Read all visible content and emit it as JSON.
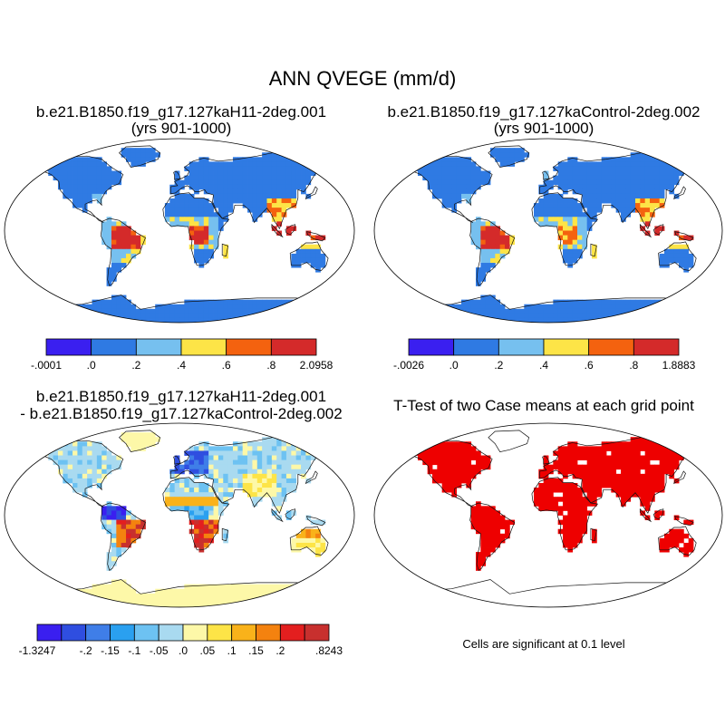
{
  "title": "ANN QVEGE (mm/d)",
  "chart_data": [
    {
      "type": "heatmap",
      "name": "case1",
      "title": "b.e21.B1850.f19_g17.127kaH11-2deg.001",
      "subtitle": "(yrs 901-1000)",
      "colorbar": {
        "ticks": [
          "-.0001",
          ".0",
          ".2",
          ".4",
          ".6",
          ".8",
          "2.0958"
        ],
        "colors": [
          "#3a1ff0",
          "#2f7ae3",
          "#76c0ef",
          "#fde447",
          "#f4620f",
          "#d42a2a"
        ]
      }
    },
    {
      "type": "heatmap",
      "name": "case2",
      "title": "b.e21.B1850.f19_g17.127kaControl-2deg.002",
      "subtitle": "(yrs 901-1000)",
      "colorbar": {
        "ticks": [
          "-.0026",
          ".0",
          ".2",
          ".4",
          ".6",
          ".8",
          "1.8883"
        ],
        "colors": [
          "#3a1ff0",
          "#2f7ae3",
          "#76c0ef",
          "#fde447",
          "#f4620f",
          "#d42a2a"
        ]
      }
    },
    {
      "type": "heatmap",
      "name": "difference",
      "title": "b.e21.B1850.f19_g17.127kaH11-2deg.001",
      "subtitle": "- b.e21.B1850.f19_g17.127kaControl-2deg.002",
      "colorbar": {
        "ticks": [
          "-1.3247",
          "",
          "-.2",
          "-.15",
          "-.1",
          "-.05",
          ".0",
          ".05",
          ".1",
          ".15",
          ".2",
          "",
          ".8243"
        ],
        "colors": [
          "#3a1ff0",
          "#2f4ee0",
          "#3f7ee8",
          "#2aa0f0",
          "#6dc2f2",
          "#a9daf0",
          "#fdf8a8",
          "#fde447",
          "#f9b21a",
          "#f4820f",
          "#e31f1f",
          "#c8302e"
        ]
      }
    },
    {
      "type": "heatmap",
      "name": "ttest",
      "title": "T-Test of two Case means at each grid point",
      "note": "Cells are significant at 0.1 level",
      "colorbar": {
        "ticks": [],
        "colors": [
          "#ee0000"
        ]
      }
    }
  ]
}
